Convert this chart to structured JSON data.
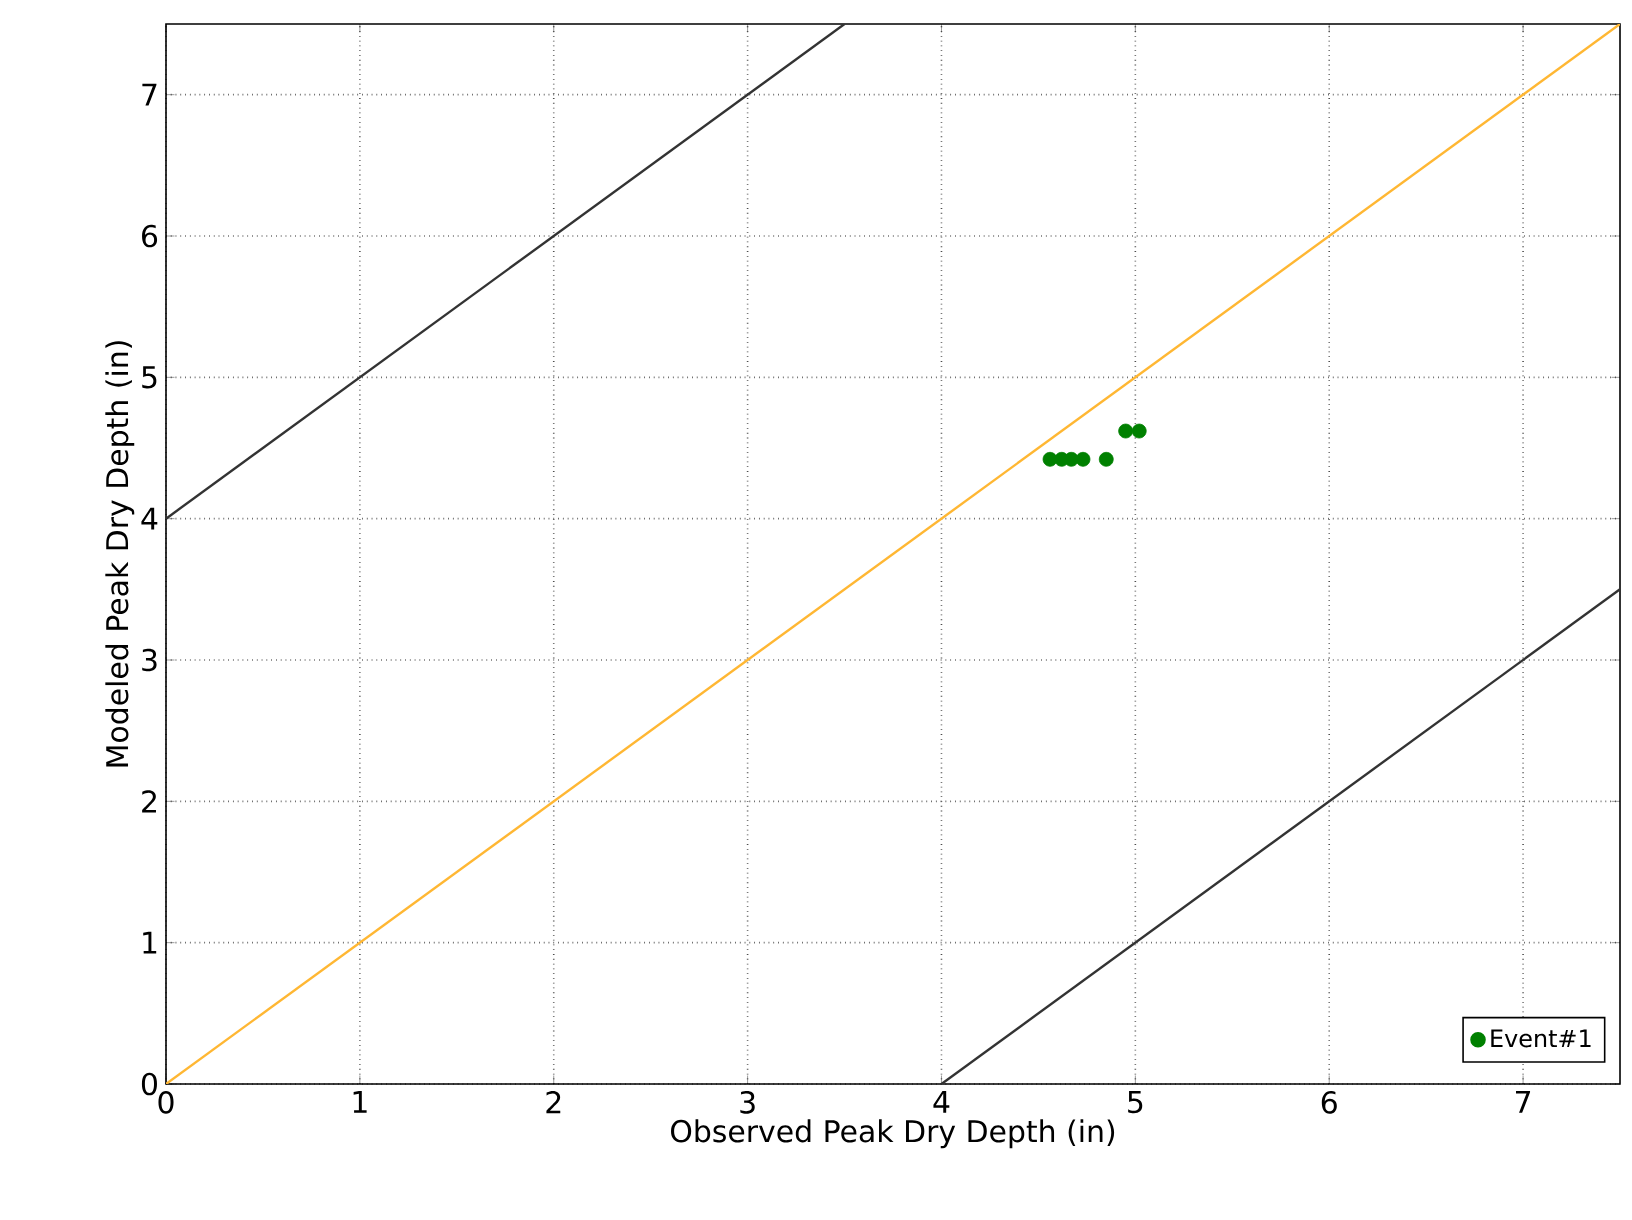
{
  "chart_data": {
    "type": "scatter",
    "xlabel": "Observed Peak Dry Depth (in)",
    "ylabel": "Modeled Peak Dry Depth (in)",
    "xlim": [
      0,
      7.5
    ],
    "ylim": [
      0,
      7.5
    ],
    "xticks": [
      0,
      1,
      2,
      3,
      4,
      5,
      6,
      7
    ],
    "yticks": [
      0,
      1,
      2,
      3,
      4,
      5,
      6,
      7
    ],
    "grid": true,
    "legend": "bottom right",
    "series": [
      {
        "type": "line",
        "color": "#333333",
        "x": [
          0,
          3.5
        ],
        "values": [
          4,
          7.5
        ]
      },
      {
        "type": "line",
        "color": "#ffb733",
        "x": [
          0,
          7.5
        ],
        "values": [
          0,
          7.5
        ]
      },
      {
        "type": "line",
        "color": "#333333",
        "x": [
          4,
          7.5
        ],
        "values": [
          0,
          3.5
        ]
      },
      {
        "marker": "circle",
        "name": "Event#1",
        "color": "#008000",
        "x": [
          4.56,
          4.62,
          4.67,
          4.73,
          4.85,
          4.95,
          5.02
        ],
        "values": [
          4.42,
          4.42,
          4.42,
          4.42,
          4.42,
          4.62,
          4.62
        ]
      }
    ]
  }
}
